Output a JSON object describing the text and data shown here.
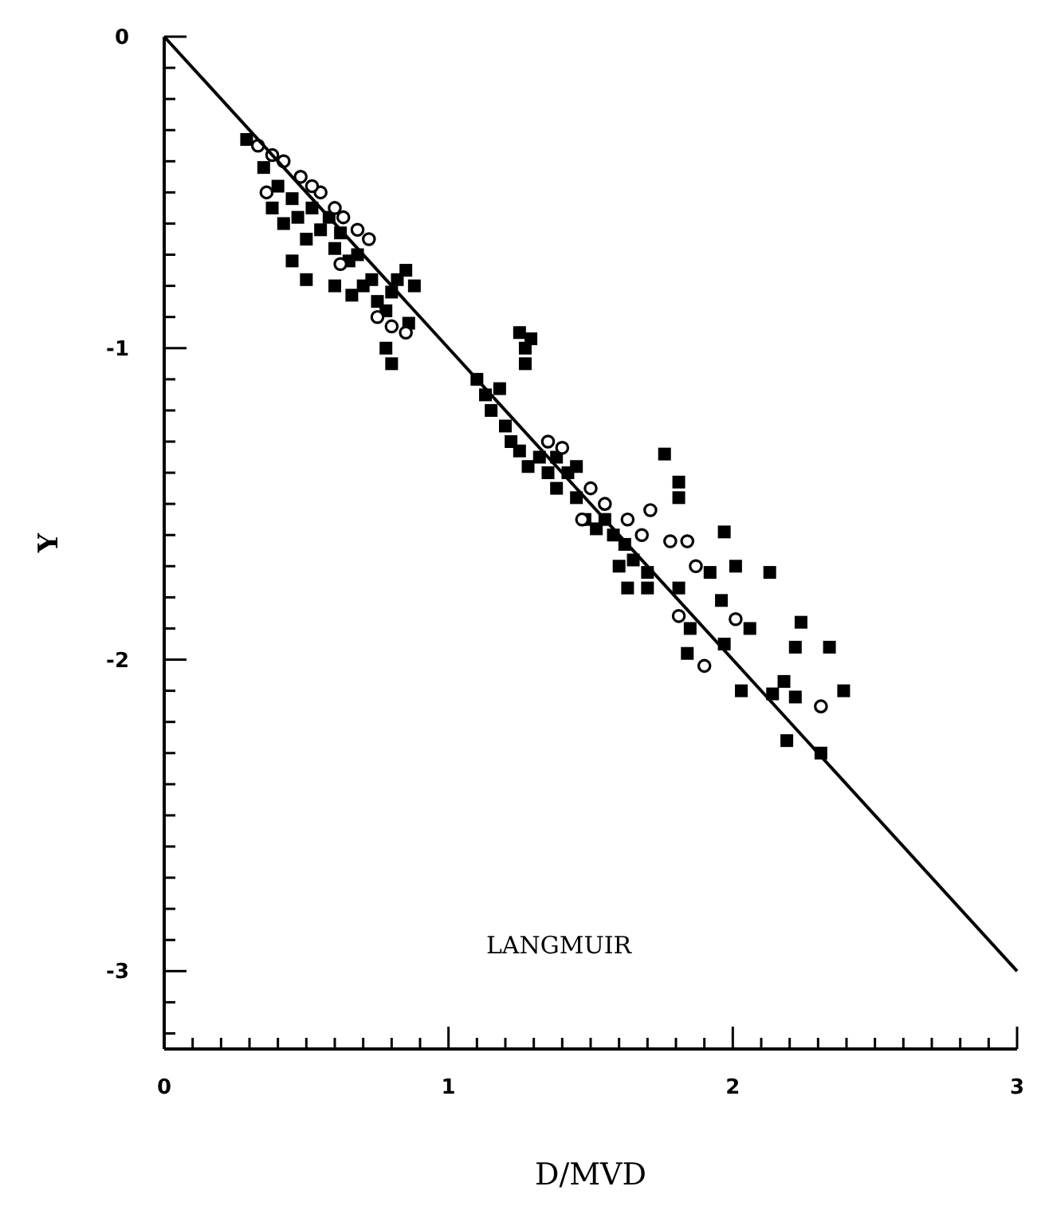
{
  "chart_data": {
    "type": "scatter",
    "xlabel": "D/MVD",
    "ylabel": "Y",
    "annotations": [
      "LANGMUIR"
    ],
    "xlim": [
      0,
      3
    ],
    "ylim": [
      -3.25,
      0
    ],
    "grid": false,
    "xticks": [
      0,
      {
        "value": 0.1,
        "label": null
      },
      {
        "value": 0.2,
        "label": null
      },
      {
        "value": 0.3,
        "label": null
      },
      {
        "value": 0.4,
        "label": null
      },
      {
        "value": 0.5,
        "label": null
      },
      {
        "value": 0.6,
        "label": null
      },
      {
        "value": 0.7,
        "label": null
      },
      {
        "value": 0.8,
        "label": null
      },
      {
        "value": 0.9,
        "label": null
      },
      1,
      {
        "value": 1.1,
        "label": null
      },
      {
        "value": 1.2,
        "label": null
      },
      {
        "value": 1.3,
        "label": null
      },
      {
        "value": 1.4,
        "label": null
      },
      {
        "value": 1.5,
        "label": null
      },
      {
        "value": 1.6,
        "label": null
      },
      {
        "value": 1.7,
        "label": null
      },
      {
        "value": 1.8,
        "label": null
      },
      {
        "value": 1.9,
        "label": null
      },
      2,
      {
        "value": 2.1,
        "label": null
      },
      {
        "value": 2.2,
        "label": null
      },
      {
        "value": 2.3,
        "label": null
      },
      {
        "value": 2.4,
        "label": null
      },
      {
        "value": 2.5,
        "label": null
      },
      {
        "value": 2.6,
        "label": null
      },
      {
        "value": 2.7,
        "label": null
      },
      {
        "value": 2.8,
        "label": null
      },
      {
        "value": 2.9,
        "label": null
      },
      3
    ],
    "yticks": [
      0,
      {
        "value": -0.1,
        "label": null
      },
      {
        "value": -0.2,
        "label": null
      },
      {
        "value": -0.3,
        "label": null
      },
      {
        "value": -0.4,
        "label": null
      },
      {
        "value": -0.5,
        "label": null
      },
      {
        "value": -0.6,
        "label": null
      },
      {
        "value": -0.7,
        "label": null
      },
      {
        "value": -0.8,
        "label": null
      },
      {
        "value": -0.9,
        "label": null
      },
      -1,
      {
        "value": -1.1,
        "label": null
      },
      {
        "value": -1.2,
        "label": null
      },
      {
        "value": -1.3,
        "label": null
      },
      {
        "value": -1.4,
        "label": null
      },
      {
        "value": -1.5,
        "label": null
      },
      {
        "value": -1.6,
        "label": null
      },
      {
        "value": -1.7,
        "label": null
      },
      {
        "value": -1.8,
        "label": null
      },
      {
        "value": -1.9,
        "label": null
      },
      -2,
      {
        "value": -2.1,
        "label": null
      },
      {
        "value": -2.2,
        "label": null
      },
      {
        "value": -2.3,
        "label": null
      },
      {
        "value": -2.4,
        "label": null
      },
      {
        "value": -2.5,
        "label": null
      },
      {
        "value": -2.6,
        "label": null
      },
      {
        "value": -2.7,
        "label": null
      },
      {
        "value": -2.8,
        "label": null
      },
      {
        "value": -2.9,
        "label": null
      },
      -3,
      {
        "value": -3.1,
        "label": null
      },
      {
        "value": -3.2,
        "label": null
      }
    ],
    "series": [
      {
        "marker": "square",
        "color": "#000000",
        "x": [
          0.29,
          0.35,
          0.38,
          0.4,
          0.42,
          0.45,
          0.47,
          0.5,
          0.52,
          0.55,
          0.58,
          0.6,
          0.62,
          0.65,
          0.68,
          0.7,
          0.73,
          0.75,
          0.78,
          0.8,
          0.82,
          0.85,
          0.88,
          0.45,
          0.5,
          0.6,
          0.66,
          0.78,
          0.8,
          0.86,
          1.1,
          1.13,
          1.15,
          1.18,
          1.2,
          1.25,
          1.27,
          1.29,
          1.27,
          1.22,
          1.25,
          1.28,
          1.32,
          1.35,
          1.38,
          1.42,
          1.45,
          1.48,
          1.52,
          1.55,
          1.58,
          1.62,
          1.65,
          1.7,
          1.6,
          1.38,
          1.45,
          1.76,
          1.81,
          1.81,
          1.97,
          2.01,
          2.13,
          2.24,
          2.22,
          2.34,
          2.39,
          2.18,
          2.22,
          2.14,
          2.03,
          2.19,
          2.31,
          1.84,
          1.85,
          1.97,
          2.06,
          1.96,
          1.92,
          1.81,
          1.63,
          1.7
        ],
        "values": [
          -0.33,
          -0.42,
          -0.55,
          -0.48,
          -0.6,
          -0.52,
          -0.58,
          -0.65,
          -0.55,
          -0.62,
          -0.58,
          -0.68,
          -0.63,
          -0.72,
          -0.7,
          -0.8,
          -0.78,
          -0.85,
          -0.88,
          -0.82,
          -0.78,
          -0.75,
          -0.8,
          -0.72,
          -0.78,
          -0.8,
          -0.83,
          -1.0,
          -1.05,
          -0.92,
          -1.1,
          -1.15,
          -1.2,
          -1.13,
          -1.25,
          -0.95,
          -1.0,
          -0.97,
          -1.05,
          -1.3,
          -1.33,
          -1.38,
          -1.35,
          -1.4,
          -1.45,
          -1.4,
          -1.48,
          -1.55,
          -1.58,
          -1.55,
          -1.6,
          -1.63,
          -1.68,
          -1.72,
          -1.7,
          -1.35,
          -1.38,
          -1.34,
          -1.43,
          -1.48,
          -1.59,
          -1.7,
          -1.72,
          -1.88,
          -1.96,
          -1.96,
          -2.1,
          -2.07,
          -2.12,
          -2.11,
          -2.1,
          -2.26,
          -2.3,
          -1.98,
          -1.9,
          -1.95,
          -1.9,
          -1.81,
          -1.72,
          -1.77,
          -1.77,
          -1.77
        ]
      },
      {
        "marker": "circle",
        "color": "#000000",
        "x": [
          0.33,
          0.38,
          0.42,
          0.48,
          0.55,
          0.6,
          0.63,
          0.68,
          0.72,
          0.62,
          0.75,
          0.8,
          0.85,
          0.36,
          0.52,
          1.4,
          1.5,
          1.55,
          1.63,
          1.68,
          1.47,
          1.35,
          2.31,
          1.9,
          1.81,
          2.01,
          1.87,
          1.84,
          1.78,
          1.71
        ],
        "values": [
          -0.35,
          -0.38,
          -0.4,
          -0.45,
          -0.5,
          -0.55,
          -0.58,
          -0.62,
          -0.65,
          -0.73,
          -0.9,
          -0.93,
          -0.95,
          -0.5,
          -0.48,
          -1.32,
          -1.45,
          -1.5,
          -1.55,
          -1.6,
          -1.55,
          -1.3,
          -2.15,
          -2.02,
          -1.86,
          -1.87,
          -1.7,
          -1.62,
          -1.62,
          -1.52
        ]
      },
      {
        "type": "line",
        "color": "#000000",
        "x": [
          0,
          3
        ],
        "values": [
          0,
          -3
        ]
      }
    ]
  }
}
